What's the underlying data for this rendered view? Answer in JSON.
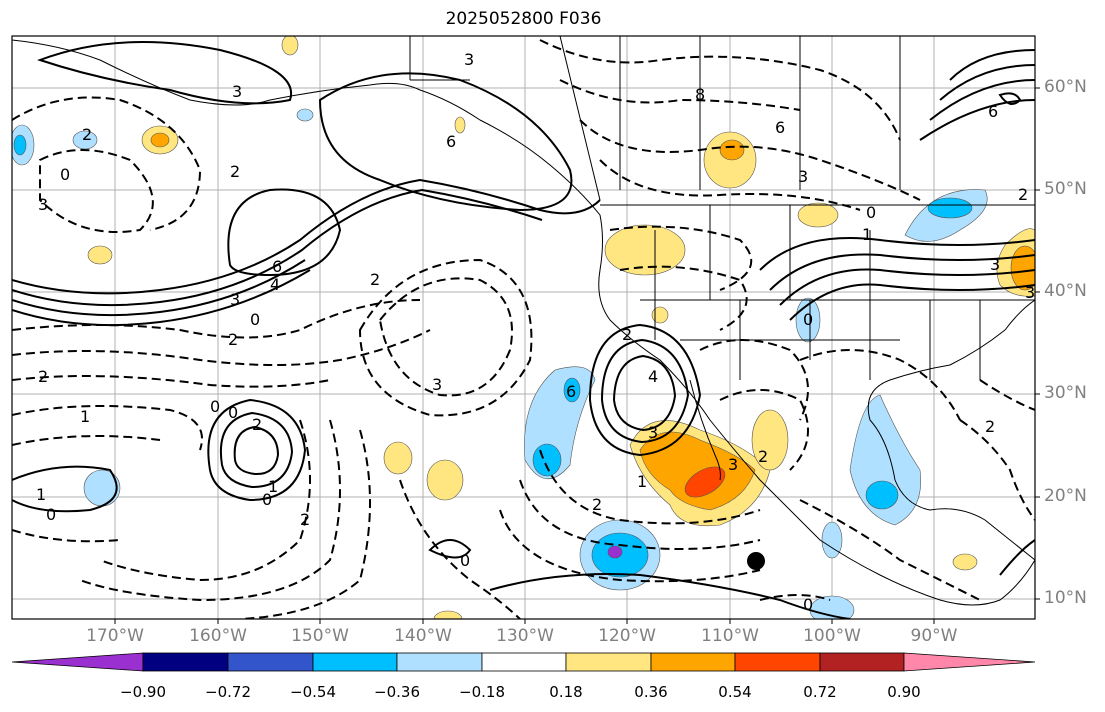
{
  "title": "2025052800 F036",
  "lat_labels": [
    "60°N",
    "50°N",
    "40°N",
    "30°N",
    "20°N",
    "10°N"
  ],
  "lon_labels": [
    "170°W",
    "160°W",
    "150°W",
    "140°W",
    "130°W",
    "120°W",
    "110°W",
    "100°W",
    "90°W"
  ],
  "colorbar": {
    "ticks": [
      "−0.90",
      "−0.72",
      "−0.54",
      "−0.36",
      "−0.18",
      "0.18",
      "0.36",
      "0.54",
      "0.72",
      "0.90"
    ],
    "colors": [
      "#9b30d0",
      "#000080",
      "#3355cc",
      "#00bfff",
      "#b0e0ff",
      "#ffffff",
      "#ffe680",
      "#ffa500",
      "#ff4500",
      "#b22222",
      "#ff88aa"
    ]
  },
  "contour_labels": [
    "3",
    "3",
    "6",
    "8",
    "6",
    "3",
    "2",
    "0",
    "2",
    "3",
    "6",
    "4",
    "3",
    "2",
    "0",
    "2",
    "2",
    "1",
    "0",
    "0",
    "2",
    "1",
    "0",
    "3",
    "2",
    "1",
    "0",
    "2",
    "6",
    "0",
    "3",
    "0",
    "2",
    "3",
    "2",
    "4",
    "1",
    "1",
    "0",
    "6",
    "2",
    "3",
    "3",
    "0",
    "2"
  ],
  "marker": "black-dot"
}
